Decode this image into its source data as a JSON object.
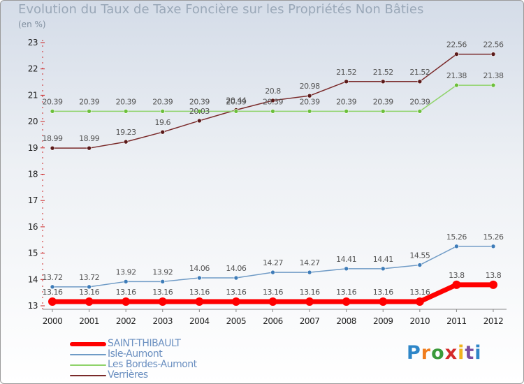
{
  "title": "Evolution du Taux de Taxe Foncière sur les Propriétés Non Bâties",
  "unit_label": "(en %)",
  "logo": {
    "text": "Proxiti",
    "letters": [
      "P",
      "r",
      "o",
      "x",
      "i",
      "t",
      "i"
    ],
    "colors": [
      "#2e86c8",
      "#f07d1e",
      "#3a9a3a",
      "#d42a2a",
      "#f0b21e",
      "#7b4ea0",
      "#2e86c8"
    ]
  },
  "chart_data": {
    "type": "line",
    "title": "Evolution du Taux de Taxe Foncière sur les Propriétés Non Bâties",
    "ylabel": "(en %)",
    "xlabel": "",
    "ylim": [
      13,
      23
    ],
    "yticks": [
      13,
      14,
      15,
      16,
      17,
      18,
      19,
      20,
      21,
      22,
      23
    ],
    "x": [
      2000,
      2001,
      2002,
      2003,
      2004,
      2005,
      2006,
      2007,
      2008,
      2009,
      2010,
      2011,
      2012
    ],
    "series": [
      {
        "name": "SAINT-THIBAULT",
        "color": "#ff0000",
        "marker": "#ff0000",
        "width": 7,
        "values": [
          13.16,
          13.16,
          13.16,
          13.16,
          13.16,
          13.16,
          13.16,
          13.16,
          13.16,
          13.16,
          13.16,
          13.8,
          13.8
        ],
        "labels": [
          "13.16",
          "13.16",
          "13.16",
          "13.16",
          "13.16",
          "13.16",
          "13.16",
          "13.16",
          "13.16",
          "13.16",
          "13.16",
          "13.8",
          "13.8"
        ]
      },
      {
        "name": "Isle-Aumont",
        "color": "#6f9bc6",
        "marker": "#3e7cb8",
        "width": 1.5,
        "values": [
          13.72,
          13.72,
          13.92,
          13.92,
          14.06,
          14.06,
          14.27,
          14.27,
          14.41,
          14.41,
          14.55,
          15.26,
          15.26
        ],
        "labels": [
          "13.72",
          "13.72",
          "13.92",
          "13.92",
          "14.06",
          "14.06",
          "14.27",
          "14.27",
          "14.41",
          "14.41",
          "14.55",
          "15.26",
          "15.26"
        ]
      },
      {
        "name": "Les Bordes-Aumont",
        "color": "#8fd36a",
        "marker": "#6cbf3c",
        "width": 1.5,
        "values": [
          20.39,
          20.39,
          20.39,
          20.39,
          20.39,
          20.39,
          20.39,
          20.39,
          20.39,
          20.39,
          20.39,
          21.38,
          21.38
        ],
        "labels": [
          "20.39",
          "20.39",
          "20.39",
          "20.39",
          "20.39",
          "20.39",
          "20.39",
          "20.39",
          "20.39",
          "20.39",
          "20.39",
          "21.38",
          "21.38"
        ]
      },
      {
        "name": "Verrières",
        "color": "#7a2a2a",
        "marker": "#5a1a1a",
        "width": 1.5,
        "values": [
          18.99,
          18.99,
          19.23,
          19.6,
          20.03,
          20.44,
          20.8,
          20.98,
          21.52,
          21.52,
          21.52,
          22.56,
          22.56
        ],
        "labels": [
          "18.99",
          "18.99",
          "19.23",
          "19.6",
          "20.03",
          "20.44",
          "20.8",
          "20.98",
          "21.52",
          "21.52",
          "21.52",
          "22.56",
          "22.56"
        ]
      }
    ],
    "legend": [
      "SAINT-THIBAULT",
      "Isle-Aumont",
      "Les Bordes-Aumont",
      "Verrières"
    ],
    "grid": false
  }
}
